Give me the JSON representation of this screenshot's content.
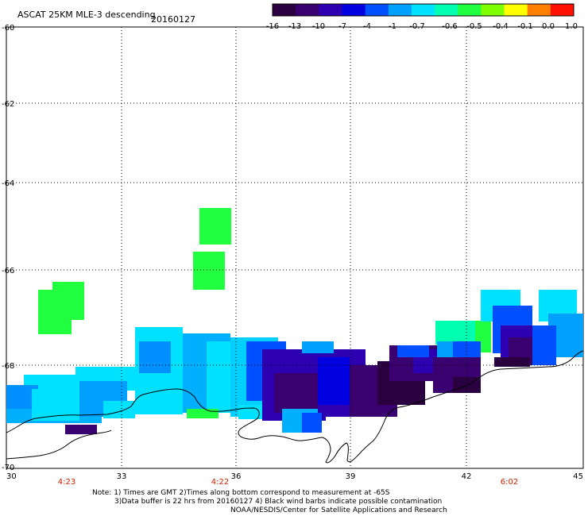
{
  "header": {
    "title": "ASCAT 25KM MLE-3 descending",
    "date": "20160127"
  },
  "colorbar": {
    "tick_labels": [
      "-16",
      "-13",
      "-10",
      "-7",
      "-4",
      "-1",
      "-0.7",
      "-0.6",
      "-0.5",
      "-0.4",
      "-0.1",
      "0.0",
      "1.0"
    ],
    "colors": [
      "#2a0040",
      "#3a0070",
      "#2c00b0",
      "#0000e0",
      "#0050ff",
      "#00a0ff",
      "#00e0ff",
      "#00ffb0",
      "#20ff40",
      "#80ff00",
      "#ffff00",
      "#ff8000",
      "#ff1000"
    ]
  },
  "axes": {
    "x_ticks": [
      "30",
      "33",
      "36",
      "39",
      "42",
      "45"
    ],
    "y_ticks": [
      "-60",
      "-62",
      "-64",
      "-66",
      "-68",
      "-70"
    ]
  },
  "time_labels": [
    "4:23",
    "4:22",
    "6:02"
  ],
  "notes": {
    "line1": "Note: 1) Times are GMT 2)Times along bottom correspond to measurement at -65S",
    "line2": "3)Data buffer is 22 hrs from 20160127 4) Black wind barbs indicate possible contamination",
    "line3": "NOAA/NESDIS/Center for Satellite Applications and Research"
  }
}
